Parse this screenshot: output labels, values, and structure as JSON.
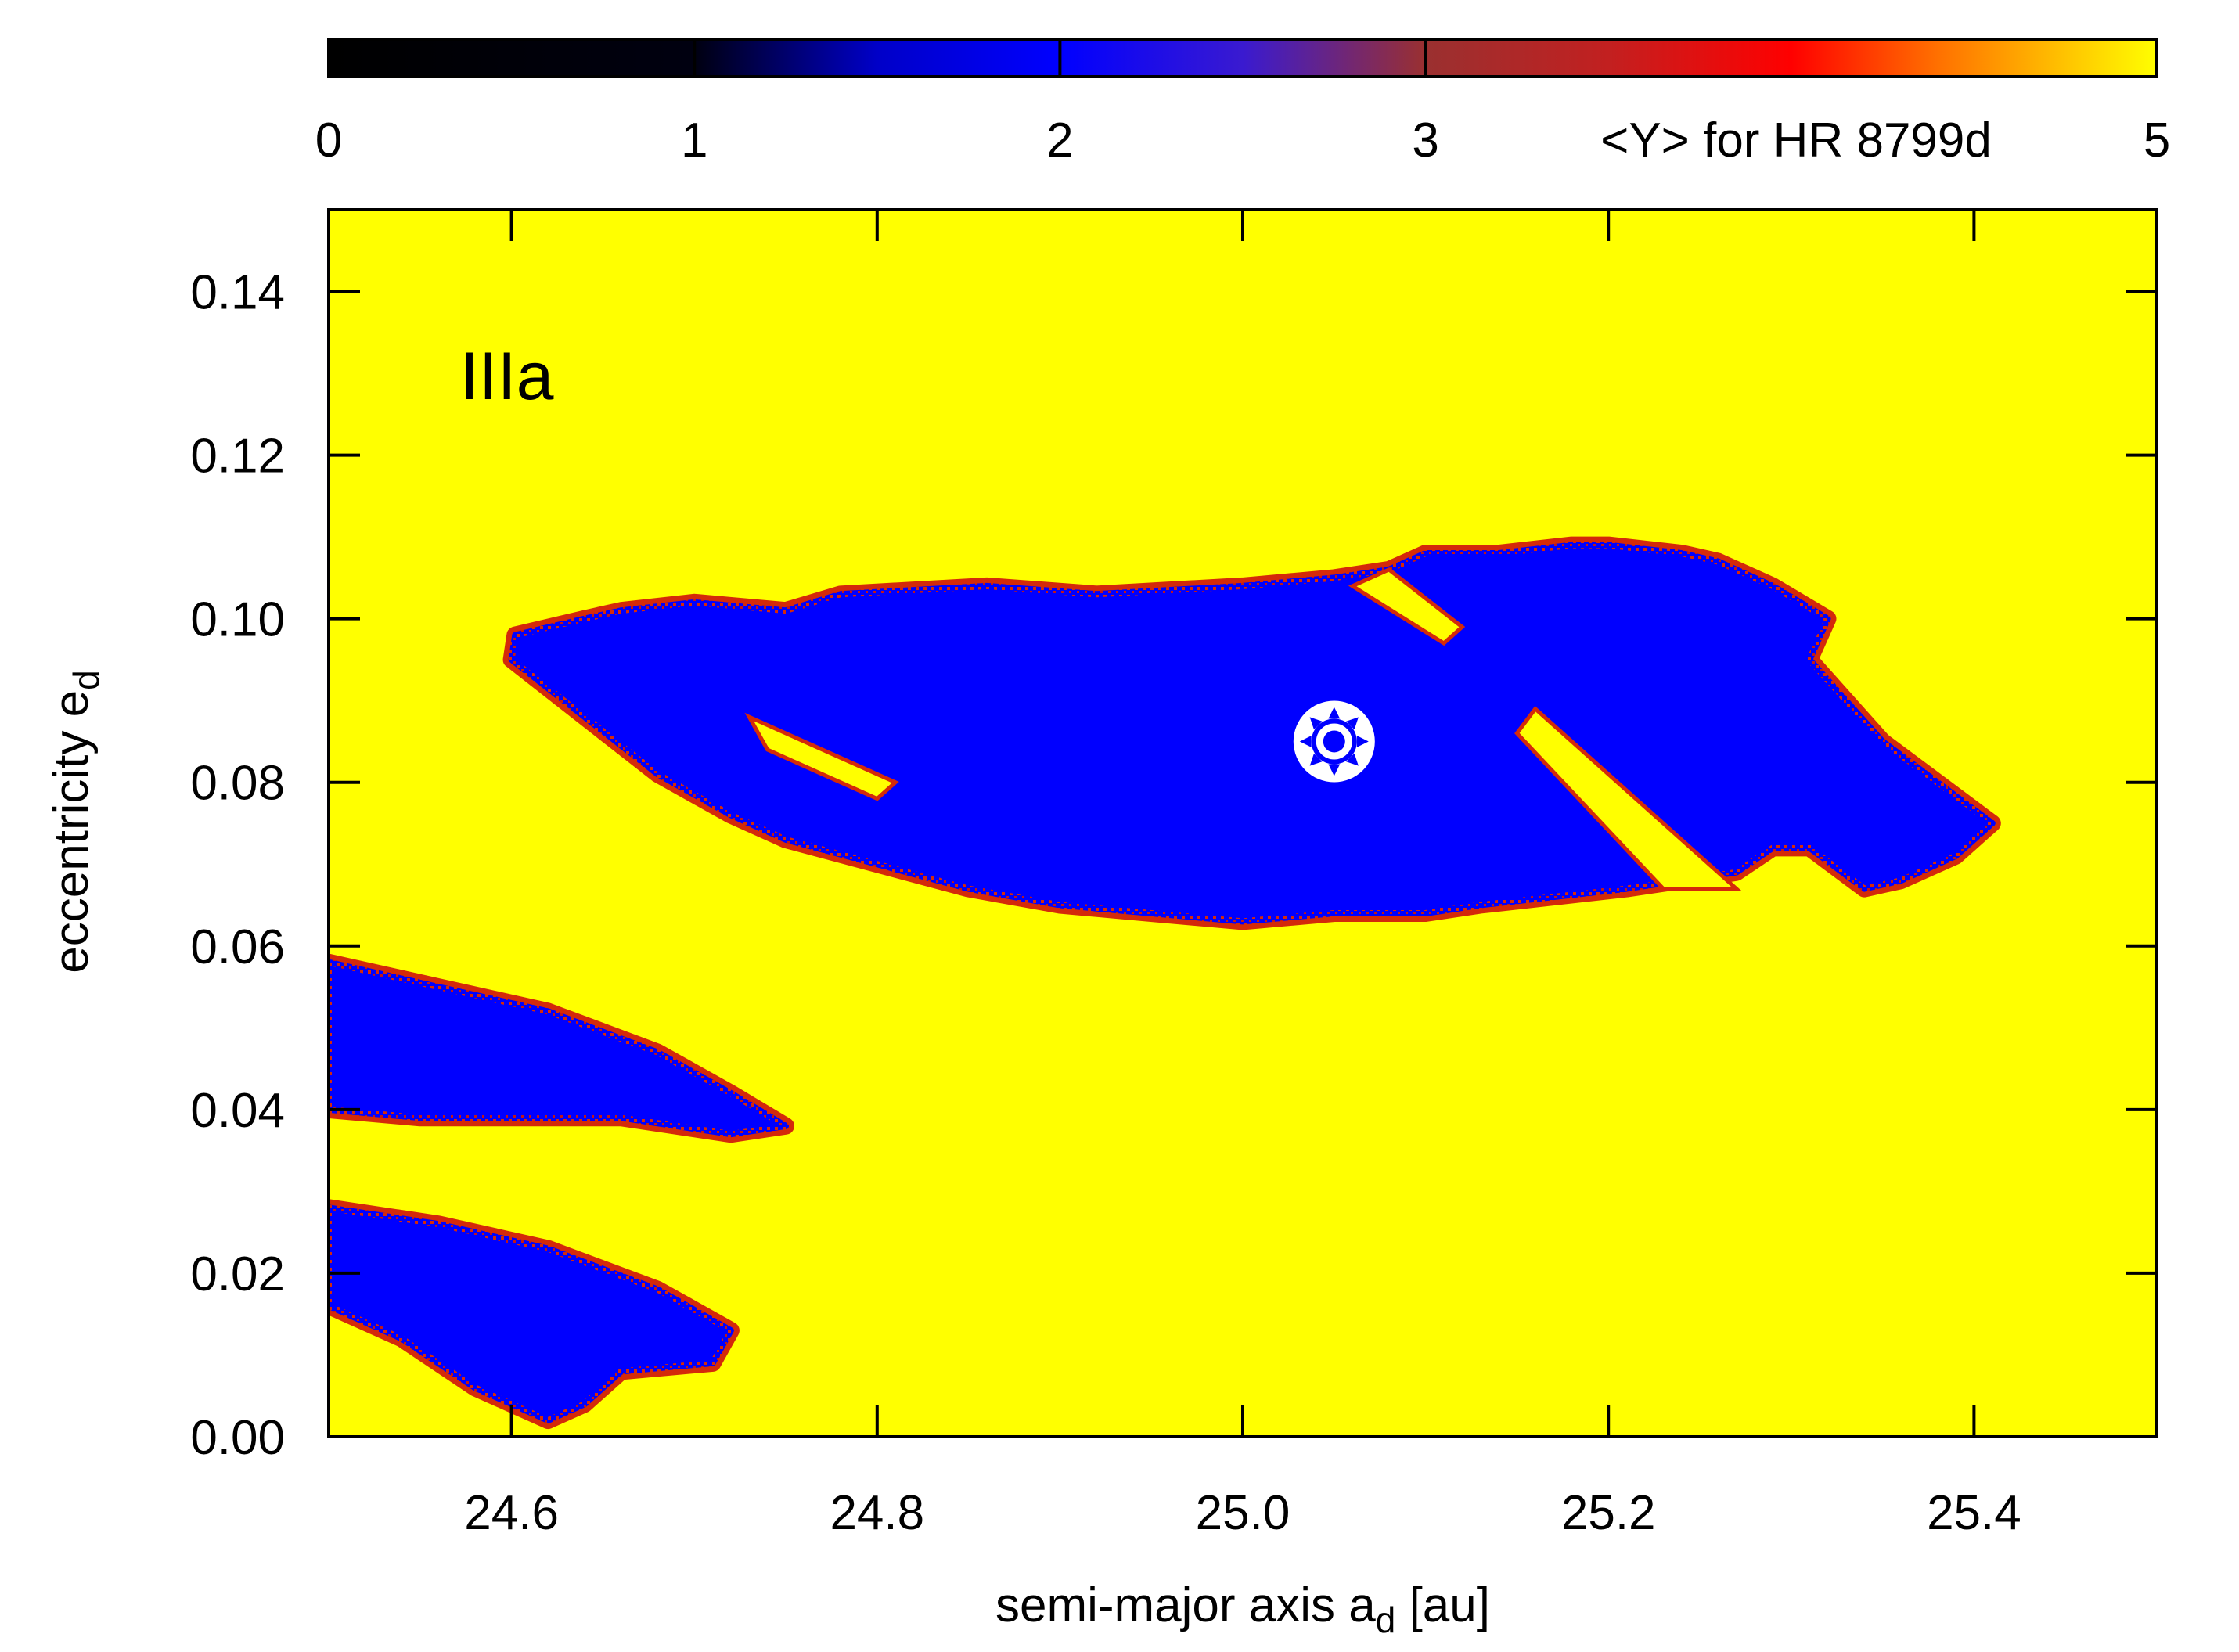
{
  "chart_data": {
    "type": "heatmap",
    "title": "",
    "panel_label": "IIIa",
    "xlabel": {
      "main": "semi-major axis a",
      "sub": "d",
      "unit": " [au]"
    },
    "ylabel": {
      "main": "eccentricity e",
      "sub": "d"
    },
    "xlim": [
      24.5,
      25.5
    ],
    "ylim": [
      0.0,
      0.15
    ],
    "x_ticks": [
      24.6,
      24.8,
      25.0,
      25.2,
      25.4
    ],
    "x_tick_labels": [
      "24.6",
      "24.8",
      "25.0",
      "25.2",
      "25.4"
    ],
    "y_ticks": [
      0.0,
      0.02,
      0.04,
      0.06,
      0.08,
      0.1,
      0.12,
      0.14
    ],
    "y_tick_labels": [
      "0.00",
      "0.02",
      "0.04",
      "0.06",
      "0.08",
      "0.10",
      "0.12",
      "0.14"
    ],
    "colorbar": {
      "label": "<Y> for HR 8799d",
      "range": [
        0,
        5
      ],
      "ticks": [
        0,
        1,
        2,
        3,
        5
      ],
      "tick_labels": [
        "0",
        "1",
        "2",
        "3",
        "5"
      ],
      "stops": [
        {
          "value": 0.0,
          "color": "#000000"
        },
        {
          "value": 1.0,
          "color": "#000010"
        },
        {
          "value": 1.5,
          "color": "#0000c8"
        },
        {
          "value": 2.0,
          "color": "#0000ff"
        },
        {
          "value": 2.5,
          "color": "#3a1ad0"
        },
        {
          "value": 3.0,
          "color": "#9a3030"
        },
        {
          "value": 3.5,
          "color": "#c22020"
        },
        {
          "value": 4.0,
          "color": "#ff0000"
        },
        {
          "value": 4.4,
          "color": "#ff7000"
        },
        {
          "value": 5.0,
          "color": "#ffff00"
        }
      ]
    },
    "background_value": 5.0,
    "background_color": "#ffff00",
    "regular_color": "#0000ff",
    "edge_color": "#d42a0a",
    "marker": {
      "a": 25.05,
      "e": 0.085,
      "type": "star-in-circle",
      "color": "#ffffff"
    },
    "regular_regions": [
      {
        "name": "main-island",
        "outline": [
          [
            24.602,
            0.098
          ],
          [
            24.64,
            0.1
          ],
          [
            24.66,
            0.101
          ],
          [
            24.7,
            0.102
          ],
          [
            24.75,
            0.101
          ],
          [
            24.78,
            0.103
          ],
          [
            24.86,
            0.104
          ],
          [
            24.92,
            0.103
          ],
          [
            25.0,
            0.104
          ],
          [
            25.05,
            0.105
          ],
          [
            25.08,
            0.106
          ],
          [
            25.1,
            0.108
          ],
          [
            25.14,
            0.108
          ],
          [
            25.18,
            0.109
          ],
          [
            25.2,
            0.109
          ],
          [
            25.24,
            0.108
          ],
          [
            25.26,
            0.107
          ],
          [
            25.29,
            0.104
          ],
          [
            25.32,
            0.1
          ],
          [
            25.31,
            0.095
          ],
          [
            25.35,
            0.085
          ],
          [
            25.38,
            0.08
          ],
          [
            25.41,
            0.075
          ],
          [
            25.39,
            0.071
          ],
          [
            25.36,
            0.068
          ],
          [
            25.34,
            0.067
          ],
          [
            25.31,
            0.072
          ],
          [
            25.29,
            0.072
          ],
          [
            25.27,
            0.069
          ],
          [
            25.24,
            0.068
          ],
          [
            25.21,
            0.067
          ],
          [
            25.17,
            0.066
          ],
          [
            25.13,
            0.065
          ],
          [
            25.1,
            0.064
          ],
          [
            25.05,
            0.064
          ],
          [
            25.0,
            0.063
          ],
          [
            24.95,
            0.064
          ],
          [
            24.9,
            0.065
          ],
          [
            24.85,
            0.067
          ],
          [
            24.8,
            0.07
          ],
          [
            24.75,
            0.073
          ],
          [
            24.72,
            0.076
          ],
          [
            24.68,
            0.081
          ],
          [
            24.64,
            0.088
          ],
          [
            24.6,
            0.095
          ]
        ],
        "gaps": [
          [
            [
              25.16,
              0.089
            ],
            [
              25.27,
              0.067
            ],
            [
              25.23,
              0.067
            ],
            [
              25.15,
              0.086
            ]
          ],
          [
            [
              24.73,
              0.088
            ],
            [
              24.81,
              0.08
            ],
            [
              24.8,
              0.078
            ],
            [
              24.74,
              0.084
            ]
          ],
          [
            [
              25.06,
              0.104
            ],
            [
              25.11,
              0.097
            ],
            [
              25.12,
              0.099
            ],
            [
              25.08,
              0.106
            ]
          ]
        ]
      },
      {
        "name": "lower-band-upper",
        "outline": [
          [
            24.5,
            0.058
          ],
          [
            24.56,
            0.055
          ],
          [
            24.62,
            0.052
          ],
          [
            24.68,
            0.047
          ],
          [
            24.72,
            0.042
          ],
          [
            24.75,
            0.038
          ],
          [
            24.72,
            0.037
          ],
          [
            24.66,
            0.039
          ],
          [
            24.6,
            0.039
          ],
          [
            24.55,
            0.039
          ],
          [
            24.5,
            0.04
          ]
        ]
      },
      {
        "name": "lower-band-bottom",
        "outline": [
          [
            24.5,
            0.028
          ],
          [
            24.56,
            0.026
          ],
          [
            24.62,
            0.023
          ],
          [
            24.68,
            0.018
          ],
          [
            24.72,
            0.013
          ],
          [
            24.71,
            0.009
          ],
          [
            24.66,
            0.008
          ],
          [
            24.64,
            0.004
          ],
          [
            24.62,
            0.002
          ],
          [
            24.58,
            0.006
          ],
          [
            24.54,
            0.012
          ],
          [
            24.5,
            0.016
          ]
        ]
      }
    ]
  }
}
